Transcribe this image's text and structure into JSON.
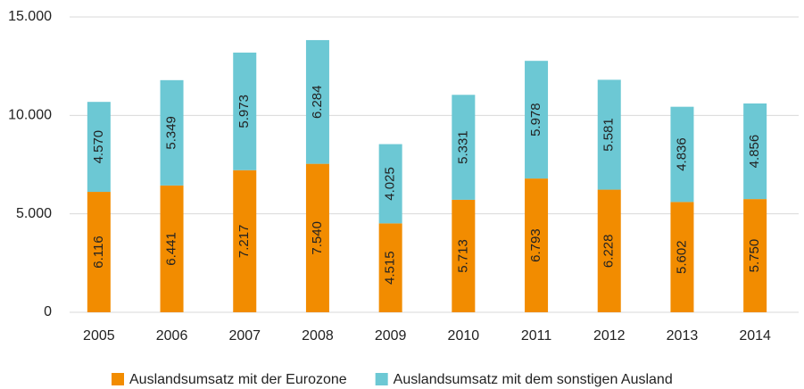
{
  "chart_data": {
    "type": "stacked_bar",
    "categories": [
      "2005",
      "2006",
      "2007",
      "2008",
      "2009",
      "2010",
      "2011",
      "2012",
      "2013",
      "2014"
    ],
    "series": [
      {
        "name": "Auslandsumsatz mit der Eurozone",
        "color": "#f28c00",
        "values": [
          6116,
          6441,
          7217,
          7540,
          4515,
          5713,
          6793,
          6228,
          5602,
          5750
        ],
        "value_labels": [
          "6.116",
          "6.441",
          "7.217",
          "7.540",
          "4.515",
          "5.713",
          "6.793",
          "6.228",
          "5.602",
          "5.750"
        ]
      },
      {
        "name": "Auslandsumsatz mit dem sonstigen Ausland",
        "color": "#6cc8d4",
        "values": [
          4570,
          5349,
          5973,
          6284,
          4025,
          5331,
          5978,
          5581,
          4836,
          4856
        ],
        "value_labels": [
          "4.570",
          "5.349",
          "5.973",
          "6.284",
          "4.025",
          "5.331",
          "5.978",
          "5.581",
          "4.836",
          "4.856"
        ]
      }
    ],
    "ylim": [
      0,
      15000
    ],
    "yticks": [
      0,
      {
        "value": 5000,
        "label": "5.000"
      },
      {
        "value": 10000,
        "label": "10.000"
      },
      {
        "value": 15000,
        "label": "15.000"
      }
    ],
    "grid": true,
    "legend": "bottom"
  }
}
